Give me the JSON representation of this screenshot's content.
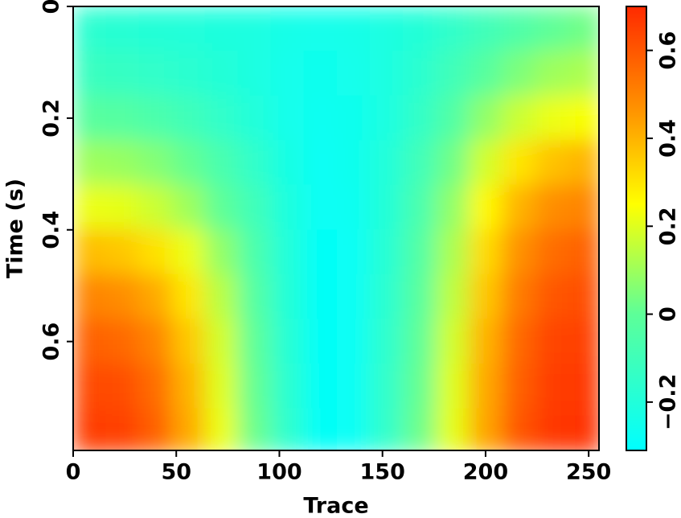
{
  "chart_data": {
    "type": "heatmap",
    "xlabel": "Trace",
    "ylabel": "Time (s)",
    "xlim": [
      0,
      255
    ],
    "xticks": [
      0,
      50,
      100,
      150,
      200,
      250
    ],
    "ylim": [
      0,
      0.795
    ],
    "yticks": [
      0,
      0.2,
      0.4,
      0.6
    ],
    "y_inverted": true,
    "x": [
      8,
      24,
      40,
      56,
      72,
      88,
      104,
      120,
      136,
      152,
      168,
      184,
      200,
      216,
      232,
      248
    ],
    "y": [
      0.04,
      0.12,
      0.2,
      0.28,
      0.36,
      0.44,
      0.52,
      0.6,
      0.68,
      0.76
    ],
    "z": [
      [
        -0.17,
        -0.18,
        -0.19,
        -0.2,
        -0.21,
        -0.22,
        -0.24,
        -0.25,
        -0.24,
        -0.22,
        -0.19,
        -0.15,
        -0.1,
        -0.05,
        0,
        0.03
      ],
      [
        -0.12,
        -0.13,
        -0.15,
        -0.17,
        -0.19,
        -0.22,
        -0.25,
        -0.26,
        -0.25,
        -0.22,
        -0.17,
        -0.1,
        -0.02,
        0.05,
        0.1,
        0.12
      ],
      [
        -0.02,
        -0.03,
        -0.06,
        -0.1,
        -0.15,
        -0.2,
        -0.25,
        -0.27,
        -0.26,
        -0.22,
        -0.14,
        -0.04,
        0.08,
        0.17,
        0.22,
        0.24
      ],
      [
        0.1,
        0.09,
        0.06,
        0.01,
        -0.07,
        -0.15,
        -0.23,
        -0.28,
        -0.26,
        -0.2,
        -0.1,
        0.03,
        0.18,
        0.3,
        0.37,
        0.4
      ],
      [
        0.22,
        0.21,
        0.17,
        0.1,
        0.0,
        -0.1,
        -0.21,
        -0.28,
        -0.27,
        -0.19,
        -0.07,
        0.08,
        0.26,
        0.4,
        0.48,
        0.5
      ],
      [
        0.38,
        0.36,
        0.31,
        0.22,
        0.08,
        -0.06,
        -0.2,
        -0.29,
        -0.28,
        -0.18,
        -0.04,
        0.12,
        0.32,
        0.47,
        0.55,
        0.58
      ],
      [
        0.5,
        0.48,
        0.42,
        0.3,
        0.14,
        -0.03,
        -0.19,
        -0.29,
        -0.28,
        -0.17,
        -0.02,
        0.15,
        0.36,
        0.52,
        0.6,
        0.62
      ],
      [
        0.58,
        0.56,
        0.5,
        0.36,
        0.18,
        0,
        -0.18,
        -0.29,
        -0.28,
        -0.16,
        0,
        0.18,
        0.4,
        0.56,
        0.64,
        0.65
      ],
      [
        0.63,
        0.62,
        0.55,
        0.4,
        0.2,
        0.01,
        -0.17,
        -0.29,
        -0.28,
        -0.15,
        0.01,
        0.2,
        0.42,
        0.58,
        0.66,
        0.67
      ],
      [
        0.66,
        0.65,
        0.58,
        0.42,
        0.22,
        0.02,
        -0.16,
        -0.29,
        -0.28,
        -0.15,
        0.02,
        0.21,
        0.43,
        0.6,
        0.67,
        0.68
      ]
    ],
    "clim": [
      -0.31,
      0.7
    ],
    "cticks": [
      {
        "value": -0.2,
        "label": "−0.2"
      },
      0,
      0.2,
      0.4,
      0.6
    ],
    "colormap": {
      "stops": [
        -0.31,
        0.0,
        0.25,
        0.45,
        0.7
      ],
      "colors": [
        "#00ffff",
        "#5dff98",
        "#ffff00",
        "#ff9a00",
        "#ff2a00"
      ]
    }
  }
}
